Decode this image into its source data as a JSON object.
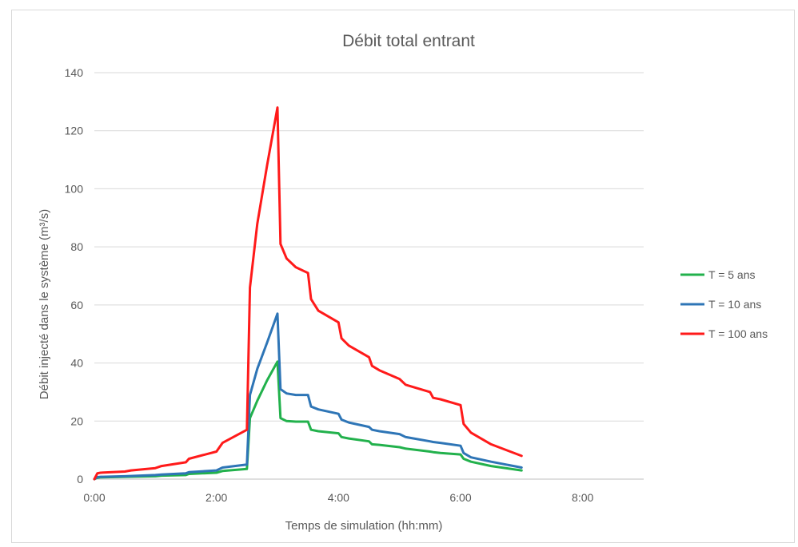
{
  "chart_data": {
    "type": "line",
    "title": "Débit total entrant",
    "xlabel": "Temps de simulation (hh:mm)",
    "ylabel": "Débit injecté dans le système (m³/s)",
    "x_unit": "hours",
    "xlim": [
      0,
      9
    ],
    "ylim": [
      0,
      140
    ],
    "x_tick_values": [
      0,
      2,
      4,
      6,
      8
    ],
    "x_tick_labels": [
      "0:00",
      "2:00",
      "4:00",
      "6:00",
      "8:00"
    ],
    "y_ticks": [
      0,
      20,
      40,
      60,
      80,
      100,
      120,
      140
    ],
    "grid": "horizontal",
    "legend_position": "right",
    "series": [
      {
        "name": "T = 5 ans",
        "color": "#22b14c",
        "x": [
          0,
          0.05,
          0.1,
          0.5,
          1,
          1.1,
          1.5,
          1.55,
          2,
          2.1,
          2.5,
          2.55,
          2.67,
          2.83,
          3,
          3.05,
          3.15,
          3.3,
          3.5,
          3.55,
          3.67,
          4,
          4.05,
          4.17,
          4.5,
          4.55,
          4.67,
          5,
          5.1,
          5.5,
          5.55,
          5.67,
          6,
          6.05,
          6.17,
          6.5,
          7
        ],
        "y": [
          0,
          0.5,
          0.6,
          0.8,
          1,
          1.2,
          1.4,
          1.8,
          2.2,
          2.8,
          3.5,
          21,
          27,
          34,
          40.5,
          21,
          20,
          19.8,
          19.8,
          17,
          16.5,
          15.8,
          14.5,
          14,
          13,
          12,
          11.8,
          11,
          10.5,
          9.5,
          9.3,
          9,
          8.5,
          7,
          6,
          4.5,
          3
        ]
      },
      {
        "name": "T = 10 ans",
        "color": "#2e75b6",
        "x": [
          0,
          0.05,
          0.1,
          0.5,
          1,
          1.1,
          1.5,
          1.55,
          2,
          2.1,
          2.5,
          2.55,
          2.67,
          2.83,
          3,
          3.05,
          3.15,
          3.3,
          3.5,
          3.55,
          3.67,
          4,
          4.05,
          4.17,
          4.5,
          4.55,
          4.67,
          5,
          5.1,
          5.5,
          5.55,
          5.67,
          6,
          6.05,
          6.17,
          6.5,
          7
        ],
        "y": [
          0,
          0.7,
          0.8,
          1,
          1.4,
          1.6,
          2,
          2.4,
          3,
          4,
          5,
          29,
          38,
          47,
          57,
          31,
          29.5,
          29,
          29,
          25,
          24,
          22.5,
          20.5,
          19.5,
          18,
          17,
          16.5,
          15.5,
          14.5,
          13,
          12.8,
          12.5,
          11.5,
          9,
          7.5,
          6,
          4
        ]
      },
      {
        "name": "T = 100 ans",
        "color": "#ff1a1a",
        "x": [
          0,
          0.05,
          0.1,
          0.5,
          0.6,
          1,
          1.1,
          1.5,
          1.55,
          2,
          2.1,
          2.5,
          2.55,
          2.67,
          2.83,
          3,
          3.05,
          3.15,
          3.3,
          3.5,
          3.55,
          3.67,
          4,
          4.05,
          4.17,
          4.5,
          4.55,
          4.67,
          5,
          5.1,
          5.5,
          5.55,
          5.67,
          6,
          6.05,
          6.17,
          6.5,
          7
        ],
        "y": [
          0,
          2,
          2.2,
          2.6,
          3,
          3.8,
          4.5,
          5.8,
          7,
          9.5,
          12.5,
          17,
          66,
          88,
          108,
          128,
          81,
          76,
          73,
          71,
          62,
          58,
          54,
          48.5,
          46,
          42,
          39,
          37.5,
          34.5,
          32.5,
          30,
          28,
          27.5,
          25.5,
          19,
          16,
          12,
          8
        ]
      }
    ]
  }
}
